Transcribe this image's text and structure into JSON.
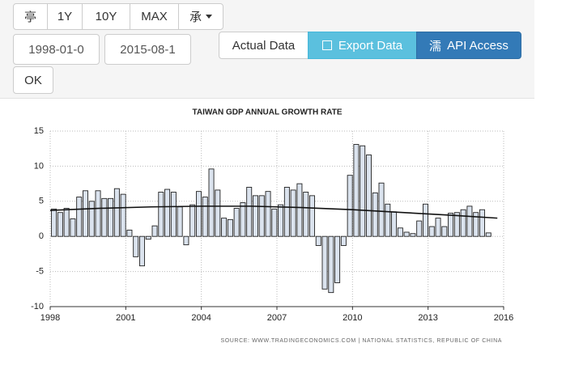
{
  "toolbar": {
    "range_buttons": [
      "亭",
      "1Y",
      "10Y",
      "MAX",
      "承"
    ],
    "start_date": "1998-01-0",
    "end_date": "2015-08-1",
    "ok": "OK",
    "actions": {
      "actual": "Actual Data",
      "export": "Export Data",
      "api_icon": "濡",
      "api": "API Access"
    }
  },
  "chart_data": {
    "type": "bar",
    "title": "TAIWAN GDP ANNUAL GROWTH RATE",
    "source": "SOURCE: WWW.TRADINGECONOMICS.COM | NATIONAL STATISTICS, REPUBLIC OF CHINA",
    "x": [
      1998,
      1998.25,
      1998.5,
      1998.75,
      1999,
      1999.25,
      1999.5,
      1999.75,
      2000,
      2000.25,
      2000.5,
      2000.75,
      2001,
      2001.25,
      2001.5,
      2001.75,
      2002,
      2002.25,
      2002.5,
      2002.75,
      2003,
      2003.25,
      2003.5,
      2003.75,
      2004,
      2004.25,
      2004.5,
      2004.75,
      2005,
      2005.25,
      2005.5,
      2005.75,
      2006,
      2006.25,
      2006.5,
      2006.75,
      2007,
      2007.25,
      2007.5,
      2007.75,
      2008,
      2008.25,
      2008.5,
      2008.75,
      2009,
      2009.25,
      2009.5,
      2009.75,
      2010,
      2010.25,
      2010.5,
      2010.75,
      2011,
      2011.25,
      2011.5,
      2011.75,
      2012,
      2012.25,
      2012.5,
      2012.75,
      2013,
      2013.25,
      2013.5,
      2013.75,
      2014,
      2014.25,
      2014.5,
      2014.75,
      2015,
      2015.25
    ],
    "series": [
      {
        "type": "bar",
        "color": "#dbe3ee",
        "values": [
          3.9,
          3.4,
          4.0,
          2.5,
          5.6,
          6.5,
          5.0,
          6.5,
          5.4,
          5.4,
          6.8,
          6.0,
          0.9,
          -2.9,
          -4.2,
          -0.4,
          1.5,
          6.3,
          6.7,
          6.3,
          4.2,
          -1.2,
          4.5,
          6.4,
          5.6,
          9.6,
          6.6,
          2.6,
          2.4,
          4.0,
          4.8,
          7.0,
          5.8,
          5.8,
          6.4,
          3.9,
          4.5,
          7.0,
          6.6,
          7.5,
          6.3,
          5.8,
          -1.3,
          -7.5,
          -8.0,
          -6.6,
          -1.3,
          8.7,
          13.1,
          12.9,
          11.6,
          6.2,
          7.6,
          4.6,
          3.5,
          1.2,
          0.6,
          0.4,
          2.2,
          4.6,
          1.4,
          2.6,
          1.4,
          3.3,
          3.4,
          3.8,
          4.3,
          3.4,
          3.8,
          0.5
        ]
      },
      {
        "type": "line",
        "color": "#111111",
        "x": [
          1998,
          2000,
          2002,
          2004,
          2006,
          2008,
          2010,
          2012,
          2014,
          2015.75
        ],
        "values": [
          3.7,
          4.0,
          4.2,
          4.3,
          4.3,
          4.1,
          3.8,
          3.4,
          3.0,
          2.6
        ]
      }
    ],
    "xlim": [
      1998,
      2016
    ],
    "xticks": [
      1998,
      2001,
      2004,
      2007,
      2010,
      2013,
      2016
    ],
    "ylim": [
      -10,
      15
    ],
    "yticks": [
      -10,
      -5,
      0,
      5,
      10,
      15
    ],
    "grid": true
  }
}
